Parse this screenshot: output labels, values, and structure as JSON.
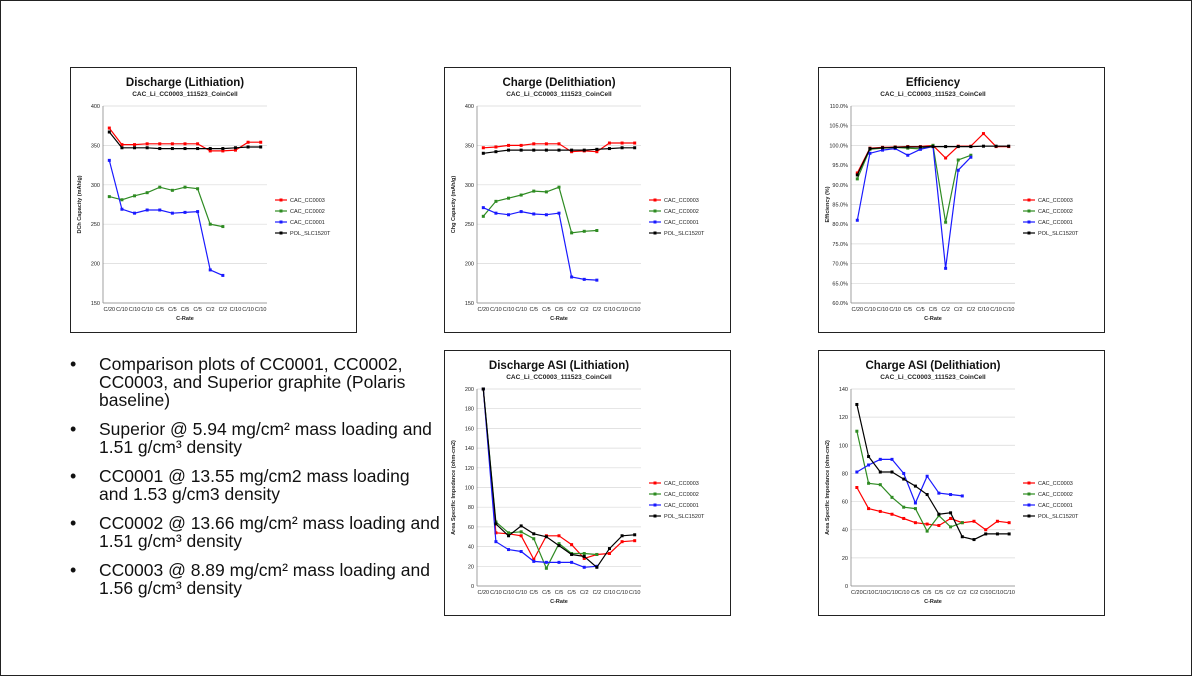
{
  "bullets": [
    "Comparison plots of CC0001, CC0002, CC0003, and Superior graphite (Polaris baseline)",
    "Superior @ 5.94 mg/cm² mass loading and 1.51 g/cm³ density",
    "CC0001 @ 13.55 mg/cm2 mass loading and 1.53 g/cm3 density",
    "CC0002 @ 13.66 mg/cm² mass loading and 1.51 g/cm³ density",
    "CC0003 @ 8.89 mg/cm² mass loading and 1.56 g/cm³ density"
  ],
  "bullet_marker": "•",
  "colors": {
    "CAC_CC0003": "#ff0000",
    "CAC_CC0002": "#2e8b22",
    "CAC_CC0001": "#1a1aff",
    "POL_SLC1520T": "#000000"
  },
  "chart_data": [
    {
      "type": "line",
      "title": "Discharge (Lithiation)",
      "subtitle": "CAC_Li_CC0003_111523_CoinCell",
      "xlabel": "C-Rate",
      "ylabel": "DCh Capacity (mAh/g)",
      "categories": [
        "C/20",
        "C/10",
        "C/10",
        "C/10",
        "C/5",
        "C/5",
        "C/5",
        "C/5",
        "C/2",
        "C/2",
        "C/10",
        "C/10",
        "C/10"
      ],
      "ylim": [
        150,
        400
      ],
      "yticks": [
        "150",
        "200",
        "250",
        "300",
        "350",
        "400"
      ],
      "grid": true,
      "legend": "right",
      "series": [
        {
          "name": "CAC_CC0003",
          "values": [
            372,
            351,
            351,
            352,
            352,
            352,
            352,
            352,
            343,
            343,
            344,
            354,
            354
          ]
        },
        {
          "name": "CAC_CC0002",
          "values": [
            285,
            281,
            286,
            290,
            297,
            293,
            297,
            295,
            250,
            247,
            null,
            null,
            null
          ]
        },
        {
          "name": "CAC_CC0001",
          "values": [
            331,
            269,
            264,
            268,
            268,
            264,
            265,
            266,
            192,
            185,
            null,
            null,
            null
          ]
        },
        {
          "name": "POL_SLC1520T",
          "values": [
            367,
            347,
            347,
            347,
            346,
            346,
            346,
            346,
            346,
            346,
            347,
            348,
            348
          ]
        }
      ]
    },
    {
      "type": "line",
      "title": "Charge (Delithiation)",
      "subtitle": "CAC_Li_CC0003_111523_CoinCell",
      "xlabel": "C-Rate",
      "ylabel": "Chg Capacity (mAh/g)",
      "categories": [
        "C/20",
        "C/10",
        "C/10",
        "C/10",
        "C/5",
        "C/5",
        "C/5",
        "C/2",
        "C/2",
        "C/2",
        "C/10",
        "C/10",
        "C/10"
      ],
      "ylim": [
        150,
        400
      ],
      "yticks": [
        "150",
        "200",
        "250",
        "300",
        "350",
        "400"
      ],
      "grid": true,
      "legend": "right",
      "series": [
        {
          "name": "CAC_CC0003",
          "values": [
            347,
            348,
            350,
            350,
            352,
            352,
            352,
            342,
            343,
            342,
            353,
            353,
            353
          ]
        },
        {
          "name": "CAC_CC0002",
          "values": [
            260,
            279,
            283,
            287,
            292,
            291,
            297,
            239,
            241,
            242,
            null,
            null,
            null
          ]
        },
        {
          "name": "CAC_CC0001",
          "values": [
            271,
            264,
            262,
            266,
            263,
            262,
            264,
            183,
            180,
            179,
            null,
            null,
            null
          ]
        },
        {
          "name": "POL_SLC1520T",
          "values": [
            340,
            342,
            344,
            344,
            344,
            344,
            344,
            344,
            344,
            345,
            346,
            347,
            347
          ]
        }
      ]
    },
    {
      "type": "line",
      "title": "Efficiency",
      "subtitle": "CAC_Li_CC0003_111523_CoinCell",
      "xlabel": "C-Rate",
      "ylabel": "Efficiency (%)",
      "categories": [
        "C/20",
        "C/10",
        "C/10",
        "C/10",
        "C/5",
        "C/5",
        "C/5",
        "C/2",
        "C/2",
        "C/2",
        "C/10",
        "C/10",
        "C/10"
      ],
      "ylim": [
        60,
        110
      ],
      "yticks": [
        "60.0%",
        "65.0%",
        "70.0%",
        "75.0%",
        "80.0%",
        "85.0%",
        "90.0%",
        "95.0%",
        "100.0%",
        "105.0%",
        "110.0%"
      ],
      "grid": true,
      "legend": "right",
      "series": [
        {
          "name": "CAC_CC0003",
          "values": [
            93,
            99.3,
            99.5,
            99.6,
            99.7,
            99.7,
            100,
            96.8,
            99.8,
            99.8,
            103,
            99.7,
            99.7
          ]
        },
        {
          "name": "CAC_CC0002",
          "values": [
            91.5,
            99,
            99.3,
            99.5,
            99.3,
            99.1,
            100,
            80.5,
            96.3,
            97.5,
            null,
            null,
            null
          ]
        },
        {
          "name": "CAC_CC0001",
          "values": [
            81,
            98,
            98.8,
            99.2,
            97.5,
            99,
            99.7,
            68.8,
            93.7,
            97,
            null,
            null,
            null
          ]
        },
        {
          "name": "POL_SLC1520T",
          "values": [
            92.5,
            99.2,
            99.4,
            99.5,
            99.6,
            99.6,
            99.7,
            99.7,
            99.7,
            99.7,
            99.8,
            99.8,
            99.8
          ]
        }
      ]
    },
    {
      "type": "line",
      "title": "Discharge ASI (Lithiation)",
      "subtitle": "CAC_Li_CC0003_111523_CoinCell",
      "xlabel": "C-Rate",
      "ylabel": "Area Specific Impedance (ohm-cm2)",
      "categories": [
        "C/20",
        "C/10",
        "C/10",
        "C/10",
        "C/5",
        "C/5",
        "C/5",
        "C/5",
        "C/2",
        "C/2",
        "C/10",
        "C/10",
        "C/10"
      ],
      "ylim": [
        0,
        200
      ],
      "yticks": [
        "0",
        "20",
        "40",
        "60",
        "80",
        "100",
        "120",
        "140",
        "160",
        "180",
        "200"
      ],
      "grid": true,
      "legend": "right",
      "series": [
        {
          "name": "CAC_CC0003",
          "values": [
            200,
            54,
            53,
            51,
            27,
            51,
            51,
            42,
            28,
            32,
            33,
            45,
            46
          ]
        },
        {
          "name": "CAC_CC0002",
          "values": [
            200,
            65,
            54,
            55,
            48,
            18,
            43,
            33,
            33,
            32,
            null,
            null,
            null
          ]
        },
        {
          "name": "CAC_CC0001",
          "values": [
            200,
            45,
            37,
            35,
            25,
            24,
            24,
            24,
            19,
            20,
            null,
            null,
            null
          ]
        },
        {
          "name": "POL_SLC1520T",
          "values": [
            200,
            63,
            51,
            61,
            53,
            50,
            41,
            32,
            30,
            19,
            38,
            51,
            52
          ]
        }
      ]
    },
    {
      "type": "line",
      "title": "Charge ASI (Delithiation)",
      "subtitle": "CAC_Li_CC0003_111523_CoinCell",
      "xlabel": "C-Rate",
      "ylabel": "Area Specific Impedance (ohm-cm2)",
      "categories": [
        "C/20",
        "C/10",
        "C/10",
        "C/10",
        "C/10",
        "C/5",
        "C/5",
        "C/5",
        "C/2",
        "C/2",
        "C/2",
        "C/10",
        "C/10",
        "C/10"
      ],
      "ylim": [
        0,
        140
      ],
      "yticks": [
        "0",
        "20",
        "40",
        "60",
        "80",
        "100",
        "120",
        "140"
      ],
      "grid": true,
      "legend": "right",
      "series": [
        {
          "name": "CAC_CC0003",
          "values": [
            70,
            55,
            53,
            51,
            48,
            45,
            44,
            43,
            48,
            45,
            46,
            40,
            46,
            45
          ]
        },
        {
          "name": "CAC_CC0002",
          "values": [
            110,
            73,
            72,
            63,
            56,
            55,
            39,
            50,
            42,
            45,
            null,
            null,
            null,
            null
          ]
        },
        {
          "name": "CAC_CC0001",
          "values": [
            81,
            86,
            90,
            90,
            80,
            59,
            78,
            66,
            65,
            64,
            null,
            null,
            null,
            null
          ]
        },
        {
          "name": "POL_SLC1520T",
          "values": [
            129,
            92,
            81,
            81,
            76,
            71,
            65,
            51,
            52,
            35,
            33,
            37,
            37,
            37
          ]
        }
      ]
    }
  ]
}
